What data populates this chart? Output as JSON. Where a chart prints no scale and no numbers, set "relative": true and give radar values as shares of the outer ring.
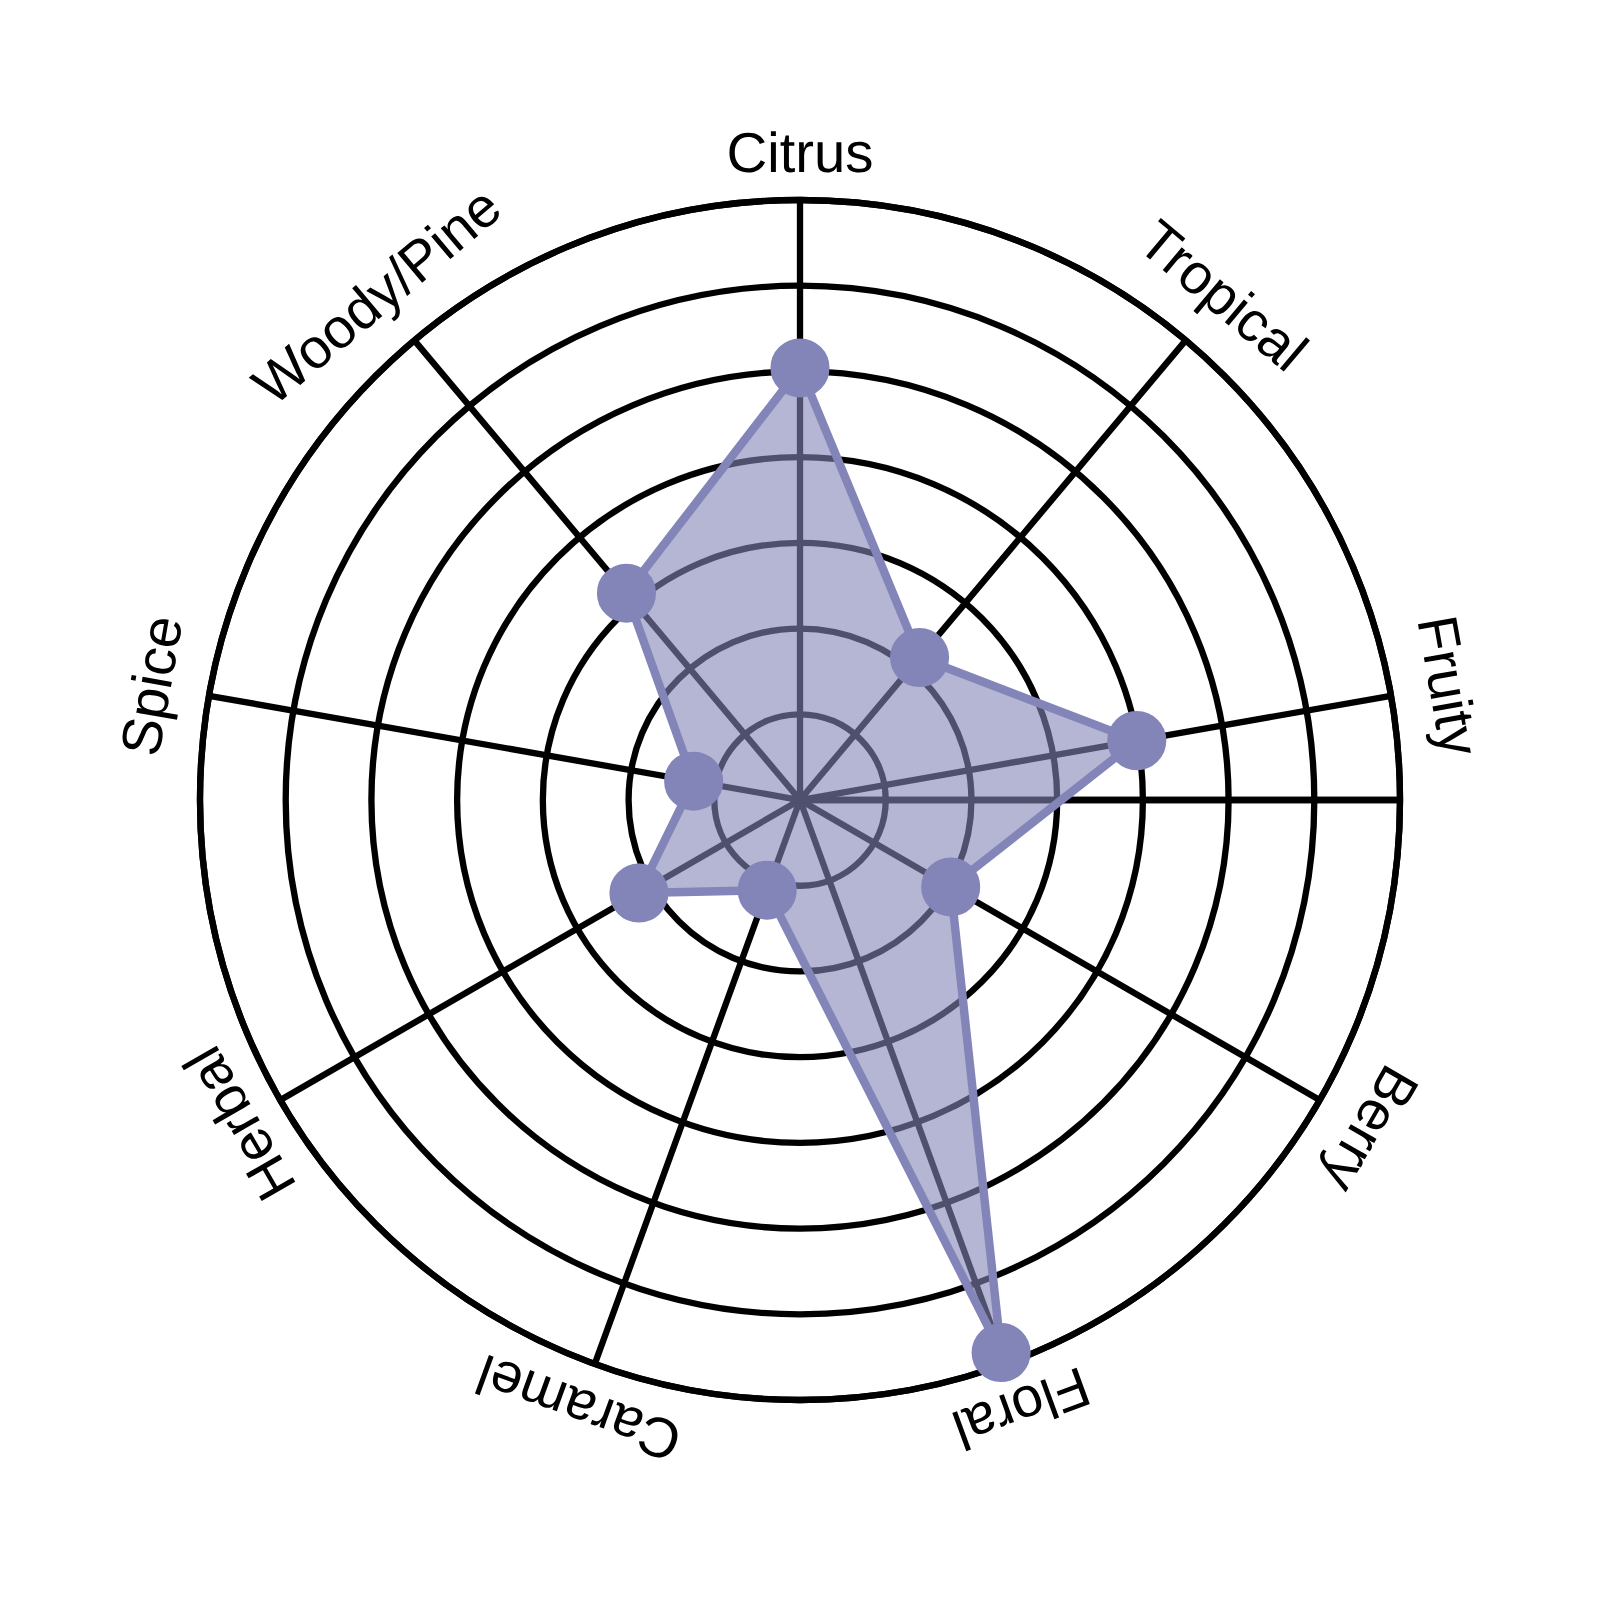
{
  "chart_data": {
    "type": "radar",
    "relative": true,
    "grid": true,
    "marker": "circle",
    "categories": [
      "Citrus",
      "Tropical",
      "Fruity",
      "Berry",
      "Floral",
      "Caramel",
      "Herbal",
      "Spice",
      "Woody/Pine"
    ],
    "series": [
      {
        "color": "#8385b8",
        "values": [
          0.72,
          0.31,
          0.57,
          0.29,
          0.98,
          0.16,
          0.31,
          0.18,
          0.45
        ]
      }
    ]
  }
}
